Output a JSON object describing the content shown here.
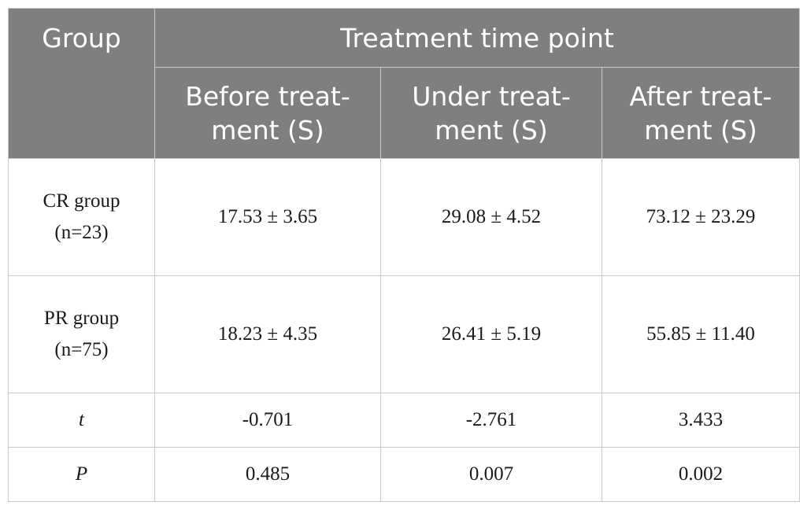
{
  "table": {
    "header": {
      "group_label": "Group",
      "time_point_label": "Treatment time point",
      "columns": [
        "Before treat-ment (S)",
        "Under treat-ment (S)",
        "After treat-ment (S)"
      ]
    },
    "rows": [
      {
        "group": "CR group (n=23)",
        "values": [
          "17.53 ± 3.65",
          "29.08 ± 4.52",
          "73.12 ± 23.29"
        ]
      },
      {
        "group": "PR group (n=75)",
        "values": [
          "18.23 ± 4.35",
          "26.41 ± 5.19",
          "55.85 ± 11.40"
        ]
      },
      {
        "group": "t",
        "values": [
          "-0.701",
          "-2.761",
          "3.433"
        ]
      },
      {
        "group": "P",
        "values": [
          "0.485",
          "0.007",
          "0.002"
        ]
      }
    ]
  }
}
